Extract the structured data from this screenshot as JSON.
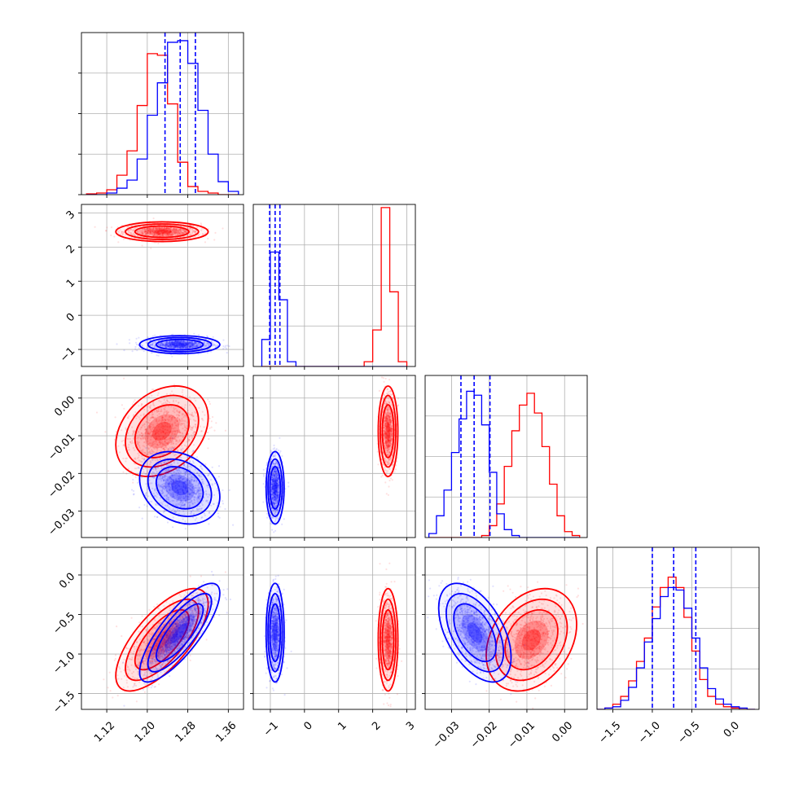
{
  "chart_data": {
    "type": "corner",
    "grid": true,
    "series": [
      {
        "color": "#ff0000"
      },
      {
        "color": "#0000ff"
      }
    ],
    "quantile_lines": {
      "series_color": "#0000ff",
      "style": "dashed"
    },
    "dims": [
      {
        "range": [
          1.07,
          1.39
        ],
        "ticks": [
          1.12,
          1.2,
          1.28,
          1.36
        ],
        "tick_labels": [
          "1.12",
          "1.20",
          "1.28",
          "1.36"
        ],
        "quantiles_blue": [
          1.235,
          1.265,
          1.295
        ],
        "hist_bins": [
          1.08,
          1.1,
          1.12,
          1.14,
          1.16,
          1.18,
          1.2,
          1.22,
          1.24,
          1.26,
          1.28,
          1.3,
          1.32,
          1.34,
          1.36,
          1.38
        ],
        "hist_red": [
          0.005,
          0.01,
          0.03,
          0.12,
          0.27,
          0.55,
          0.87,
          0.86,
          0.56,
          0.2,
          0.05,
          0.02,
          0.01,
          0.0,
          0.0
        ],
        "hist_blue": [
          0.0,
          0.0,
          0.01,
          0.04,
          0.09,
          0.22,
          0.49,
          0.69,
          0.94,
          0.95,
          0.81,
          0.52,
          0.25,
          0.08,
          0.02
        ],
        "hist_max": 1.0
      },
      {
        "range": [
          -1.5,
          3.25
        ],
        "ticks": [
          -1,
          0,
          1,
          2,
          3
        ],
        "tick_labels": [
          "−1",
          "0",
          "1",
          "2",
          "3"
        ],
        "quantiles_blue": [
          -1.02,
          -0.86,
          -0.72
        ],
        "hist_bins": [
          -1.25,
          -1.0,
          -0.75,
          -0.5,
          -0.25,
          0.0,
          0.25,
          0.5,
          0.75,
          1.0,
          1.25,
          1.5,
          1.75,
          2.0,
          2.25,
          2.5,
          2.75,
          3.0
        ],
        "hist_red": [
          0,
          0,
          0,
          0,
          0,
          0,
          0,
          0,
          0,
          0,
          0,
          0,
          0.03,
          0.23,
          1.0,
          0.47,
          0.03
        ],
        "hist_blue": [
          0.17,
          0.72,
          0.42,
          0.03,
          0,
          0,
          0,
          0,
          0,
          0,
          0,
          0,
          0,
          0,
          0,
          0,
          0
        ],
        "hist_max": 1.02
      },
      {
        "range": [
          -0.037,
          0.006
        ],
        "ticks": [
          -0.03,
          -0.02,
          -0.01,
          0.0
        ],
        "tick_labels": [
          "−0.03",
          "−0.02",
          "−0.01",
          "0.00"
        ],
        "quantiles_blue": [
          -0.0275,
          -0.024,
          -0.0198
        ],
        "hist_bins": [
          -0.036,
          -0.034,
          -0.032,
          -0.03,
          -0.028,
          -0.026,
          -0.024,
          -0.022,
          -0.02,
          -0.018,
          -0.016,
          -0.014,
          -0.012,
          -0.01,
          -0.008,
          -0.006,
          -0.004,
          -0.002,
          0.0,
          0.002,
          0.004
        ],
        "hist_red": [
          0,
          0,
          0,
          0,
          0,
          0,
          0,
          0.01,
          0.06,
          0.17,
          0.36,
          0.54,
          0.67,
          0.73,
          0.63,
          0.46,
          0.27,
          0.11,
          0.03,
          0.01
        ],
        "hist_blue": [
          0.02,
          0.11,
          0.24,
          0.43,
          0.6,
          0.74,
          0.72,
          0.57,
          0.33,
          0.12,
          0.04,
          0.01,
          0,
          0,
          0,
          0,
          0,
          0,
          0,
          0
        ],
        "hist_max": 0.82
      },
      {
        "range": [
          -1.7,
          0.35
        ],
        "ticks": [
          -1.5,
          -1.0,
          -0.5,
          0.0
        ],
        "tick_labels": [
          "−1.5",
          "−1.0",
          "−0.5",
          "0.0"
        ],
        "quantiles_blue": [
          -1.0,
          -0.73,
          -0.45
        ],
        "hist_bins": [
          -1.7,
          -1.6,
          -1.5,
          -1.4,
          -1.3,
          -1.2,
          -1.1,
          -1.0,
          -0.9,
          -0.8,
          -0.7,
          -0.6,
          -0.5,
          -0.4,
          -0.3,
          -0.2,
          -0.1,
          0.0,
          0.1,
          0.2,
          0.3
        ],
        "hist_red": [
          0,
          0.01,
          0.04,
          0.1,
          0.22,
          0.37,
          0.55,
          0.79,
          0.94,
          1.02,
          0.94,
          0.71,
          0.45,
          0.23,
          0.1,
          0.04,
          0.02,
          0.01,
          0,
          0
        ],
        "hist_blue": [
          0,
          0.01,
          0.02,
          0.07,
          0.17,
          0.32,
          0.52,
          0.7,
          0.87,
          0.94,
          0.92,
          0.78,
          0.55,
          0.32,
          0.16,
          0.08,
          0.04,
          0.02,
          0.01,
          0
        ],
        "hist_max": 1.25
      }
    ],
    "gaussians": [
      {
        "color": "#ff0000",
        "mean": [
          1.229,
          2.45,
          -0.0088,
          -0.82
        ],
        "sd": [
          0.038,
          0.12,
          0.005,
          0.27
        ],
        "corr": [
          [
            1,
            0,
            0.3,
            0.7
          ],
          [
            0,
            1,
            0,
            0
          ],
          [
            0.3,
            0,
            1,
            0.3
          ],
          [
            0.7,
            0,
            0.3,
            1
          ]
        ]
      },
      {
        "color": "#0000ff",
        "mean": [
          1.264,
          -0.86,
          -0.0238,
          -0.73
        ],
        "sd": [
          0.033,
          0.11,
          0.004,
          0.26
        ],
        "corr": [
          [
            1,
            0,
            -0.25,
            0.8
          ],
          [
            0,
            1,
            0,
            0
          ],
          [
            -0.25,
            0,
            1,
            -0.5
          ],
          [
            0.8,
            0,
            -0.5,
            1
          ]
        ]
      }
    ]
  }
}
